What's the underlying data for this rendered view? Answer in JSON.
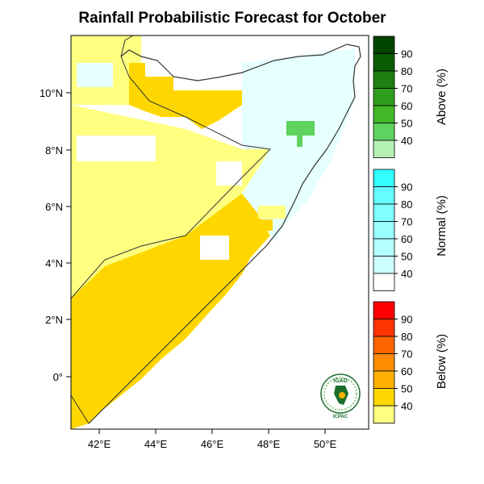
{
  "title": "Rainfall Probabilistic Forecast for October",
  "map": {
    "lon_range": [
      41,
      51.5
    ],
    "lat_range": [
      -1.8,
      11.8
    ],
    "x_ticks": [
      "42°E",
      "44°E",
      "46°E",
      "48°E",
      "50°E"
    ],
    "y_ticks": [
      "10°N",
      "8°N",
      "6°N",
      "4°N",
      "2°N",
      "0°"
    ]
  },
  "legend": {
    "above": {
      "title": "Above (%)",
      "labels": [
        "40",
        "50",
        "60",
        "70",
        "80",
        "90"
      ],
      "colors": [
        "#b4f0b4",
        "#5fd35f",
        "#42b829",
        "#2f9e1e",
        "#1e7f12",
        "#0b5c00",
        "#004400"
      ]
    },
    "normal": {
      "title": "Normal (%)",
      "labels": [
        "40",
        "50",
        "60",
        "70",
        "80",
        "90"
      ],
      "colors": [
        "#ffffff",
        "#ccffff",
        "#b3ffff",
        "#99ffff",
        "#80ffff",
        "#66ffff",
        "#33ffff"
      ]
    },
    "below": {
      "title": "Below (%)",
      "labels": [
        "40",
        "50",
        "60",
        "70",
        "80",
        "90"
      ],
      "colors": [
        "#ffff80",
        "#ffd700",
        "#ffb000",
        "#ff8c00",
        "#ff6600",
        "#ff3300",
        "#ff0000"
      ]
    }
  },
  "logo": {
    "top_text": "IGAD",
    "bottom_text": "ICPAC"
  }
}
